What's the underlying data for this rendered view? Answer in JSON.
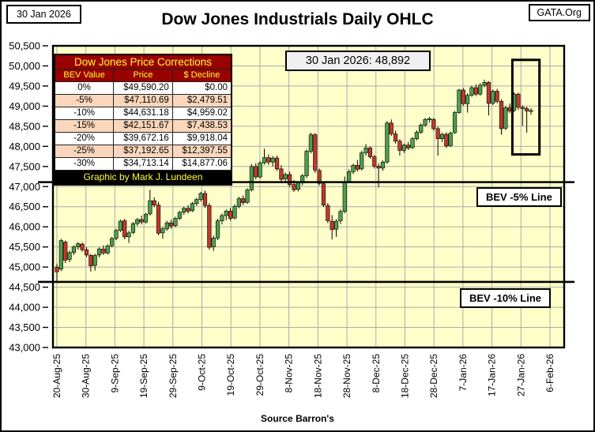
{
  "header": {
    "date_box": "30 Jan 2026",
    "org_box": "GATA.Org",
    "title": "Dow Jones Industrials Daily OHLC"
  },
  "corrections_table": {
    "title": "Dow Jones Price Corrections",
    "columns": [
      "BEV Value",
      "Price",
      "$ Decline"
    ],
    "rows": [
      [
        "0%",
        "$49,590.20",
        "$0.00"
      ],
      [
        "-5%",
        "$47,110.69",
        "$2,479.51"
      ],
      [
        "-10%",
        "$44,631.18",
        "$4,959.02"
      ],
      [
        "-15%",
        "$42,151.67",
        "$7,438.53"
      ],
      [
        "-20%",
        "$39,672.16",
        "$9,918.04"
      ],
      [
        "-25%",
        "$37,192.65",
        "$12,397.55"
      ],
      [
        "-30%",
        "$34,713.14",
        "$14,877.06"
      ]
    ],
    "footer": "Graphic by Mark J. Lundeen",
    "header_bg": "#990000",
    "header_text": "#FFFF33",
    "row_alt_bg": "#FAD7BC"
  },
  "annotations": {
    "price_callout": "30 Jan 2026: 48,892",
    "source": "Source Barron's"
  },
  "chart_data": {
    "type": "candlestick-ohlc",
    "title": "Dow Jones Industrials Daily OHLC",
    "ylim": [
      43000,
      50500
    ],
    "y_tick_step": 500,
    "y_tick_labels": [
      "43,000",
      "43,500",
      "44,000",
      "44,500",
      "45,000",
      "45,500",
      "46,000",
      "46,500",
      "47,000",
      "47,500",
      "48,000",
      "48,500",
      "49,000",
      "49,500",
      "50,000",
      "50,500"
    ],
    "x_tick_labels": [
      "20-Aug-25",
      "30-Aug-25",
      "9-Sep-25",
      "19-Sep-25",
      "29-Sep-25",
      "9-Oct-25",
      "19-Oct-25",
      "29-Oct-25",
      "8-Nov-25",
      "18-Nov-25",
      "28-Nov-25",
      "8-Dec-25",
      "18-Dec-25",
      "28-Dec-25",
      "7-Jan-26",
      "17-Jan-26",
      "27-Jan-26",
      "6-Feb-26"
    ],
    "grid": true,
    "legend": "none",
    "plot_bg": "#FFFFC9",
    "grid_color": "#ABABAB",
    "up_color": "#4E9D50",
    "down_color": "#C0392B",
    "hlines": [
      {
        "value": 47110.69,
        "label": "BEV -5% Line"
      },
      {
        "value": 44631.18,
        "label": "BEV -10% Line"
      }
    ],
    "highlight_box": {
      "start_index": 107.6,
      "end_index": 114,
      "top_value": 50150,
      "bottom_value": 47800
    },
    "last_close": 48892,
    "ohlc": [
      [
        "20-Aug-25",
        45000,
        45080,
        44640,
        44880
      ],
      [
        "21-Aug-25",
        44950,
        45700,
        44900,
        45660
      ],
      [
        "22-Aug-25",
        45620,
        45660,
        45100,
        45170
      ],
      [
        "25-Aug-25",
        45190,
        45410,
        45120,
        45360
      ],
      [
        "26-Aug-25",
        45360,
        45540,
        45300,
        45500
      ],
      [
        "27-Aug-25",
        45500,
        45620,
        45430,
        45580
      ],
      [
        "28-Aug-25",
        45570,
        45610,
        45380,
        45430
      ],
      [
        "29-Aug-25",
        45430,
        45490,
        45250,
        45300
      ],
      [
        "2-Sep-25",
        45290,
        45330,
        44890,
        45030
      ],
      [
        "3-Sep-25",
        45040,
        45330,
        44910,
        45290
      ],
      [
        "4-Sep-25",
        45300,
        45490,
        45240,
        45450
      ],
      [
        "5-Sep-25",
        45450,
        45540,
        45300,
        45350
      ],
      [
        "8-Sep-25",
        45350,
        45560,
        45310,
        45530
      ],
      [
        "9-Sep-25",
        45530,
        45750,
        45490,
        45710
      ],
      [
        "10-Sep-25",
        45710,
        45950,
        45670,
        45910
      ],
      [
        "11-Sep-25",
        45910,
        46180,
        45870,
        46140
      ],
      [
        "12-Sep-25",
        46150,
        46200,
        45690,
        45750
      ],
      [
        "15-Sep-25",
        45750,
        45900,
        45600,
        45850
      ],
      [
        "16-Sep-25",
        45860,
        46120,
        45820,
        46080
      ],
      [
        "17-Sep-25",
        46080,
        46220,
        46020,
        46180
      ],
      [
        "18-Sep-25",
        46180,
        46280,
        46060,
        46120
      ],
      [
        "19-Sep-25",
        46120,
        46350,
        46080,
        46310
      ],
      [
        "22-Sep-25",
        46320,
        46920,
        46280,
        46650
      ],
      [
        "23-Sep-25",
        46650,
        46730,
        46490,
        46540
      ],
      [
        "24-Sep-25",
        46540,
        46620,
        45790,
        45840
      ],
      [
        "25-Sep-25",
        45850,
        46000,
        45700,
        45950
      ],
      [
        "26-Sep-25",
        45950,
        46150,
        45900,
        46100
      ],
      [
        "29-Sep-25",
        46100,
        46180,
        45950,
        46020
      ],
      [
        "30-Sep-25",
        46030,
        46250,
        45990,
        46210
      ],
      [
        "1-Oct-25",
        46210,
        46400,
        46170,
        46360
      ],
      [
        "2-Oct-25",
        46360,
        46500,
        46300,
        46460
      ],
      [
        "3-Oct-25",
        46460,
        46540,
        46330,
        46390
      ],
      [
        "6-Oct-25",
        46400,
        46620,
        46370,
        46580
      ],
      [
        "7-Oct-25",
        46580,
        46720,
        46520,
        46680
      ],
      [
        "8-Oct-25",
        46680,
        46870,
        46630,
        46830
      ],
      [
        "9-Oct-25",
        46830,
        46900,
        46470,
        46530
      ],
      [
        "10-Oct-25",
        46530,
        46590,
        45430,
        45490
      ],
      [
        "13-Oct-25",
        45500,
        45780,
        45400,
        45720
      ],
      [
        "14-Oct-25",
        45720,
        46200,
        45670,
        46150
      ],
      [
        "15-Oct-25",
        46150,
        46330,
        46060,
        46280
      ],
      [
        "16-Oct-25",
        46280,
        46430,
        46160,
        46390
      ],
      [
        "17-Oct-25",
        46390,
        46470,
        46150,
        46210
      ],
      [
        "20-Oct-25",
        46220,
        46560,
        46180,
        46510
      ],
      [
        "21-Oct-25",
        46510,
        46750,
        46460,
        46700
      ],
      [
        "22-Oct-25",
        46700,
        46780,
        46540,
        46600
      ],
      [
        "23-Oct-25",
        46610,
        46960,
        46570,
        46920
      ],
      [
        "24-Oct-25",
        46920,
        47560,
        46880,
        47500
      ],
      [
        "27-Oct-25",
        47500,
        47580,
        47180,
        47240
      ],
      [
        "28-Oct-25",
        47240,
        47640,
        47200,
        47590
      ],
      [
        "29-Oct-25",
        47590,
        47940,
        47550,
        47720
      ],
      [
        "30-Oct-25",
        47720,
        47800,
        47540,
        47610
      ],
      [
        "31-Oct-25",
        47610,
        47760,
        47500,
        47710
      ],
      [
        "3-Nov-25",
        47710,
        47770,
        47390,
        47440
      ],
      [
        "4-Nov-25",
        47440,
        47530,
        47130,
        47180
      ],
      [
        "5-Nov-25",
        47190,
        47350,
        47100,
        47300
      ],
      [
        "6-Nov-25",
        47300,
        47370,
        46990,
        47050
      ],
      [
        "7-Nov-25",
        47050,
        47170,
        46870,
        46920
      ],
      [
        "10-Nov-25",
        46930,
        47130,
        46880,
        47090
      ],
      [
        "11-Nov-25",
        47090,
        47310,
        47030,
        47270
      ],
      [
        "12-Nov-25",
        47270,
        47920,
        47210,
        47880
      ],
      [
        "13-Nov-25",
        47880,
        48340,
        47830,
        48290
      ],
      [
        "14-Nov-25",
        48290,
        48330,
        47340,
        47410
      ],
      [
        "17-Nov-25",
        47400,
        47450,
        47030,
        47080
      ],
      [
        "18-Nov-25",
        47070,
        47110,
        46490,
        46540
      ],
      [
        "19-Nov-25",
        46530,
        46590,
        46090,
        46150
      ],
      [
        "20-Nov-25",
        46140,
        46290,
        45690,
        45930
      ],
      [
        "21-Nov-25",
        45940,
        46190,
        45750,
        46140
      ],
      [
        "24-Nov-25",
        46150,
        46430,
        46070,
        46380
      ],
      [
        "25-Nov-25",
        46380,
        47250,
        46340,
        47120
      ],
      [
        "26-Nov-25",
        47120,
        47430,
        47090,
        47370
      ],
      [
        "28-Nov-25",
        47370,
        47570,
        47310,
        47530
      ],
      [
        "1-Dec-25",
        47530,
        47660,
        47370,
        47430
      ],
      [
        "2-Dec-25",
        47440,
        47890,
        47400,
        47840
      ],
      [
        "3-Dec-25",
        47840,
        48060,
        47770,
        47960
      ],
      [
        "4-Dec-25",
        47960,
        48000,
        47690,
        47740
      ],
      [
        "5-Dec-25",
        47740,
        47790,
        47450,
        47510
      ],
      [
        "8-Dec-25",
        47510,
        47580,
        46980,
        47460
      ],
      [
        "9-Dec-25",
        47460,
        47650,
        47390,
        47610
      ],
      [
        "10-Dec-25",
        47610,
        48630,
        47570,
        48580
      ],
      [
        "11-Dec-25",
        48580,
        48670,
        48260,
        48310
      ],
      [
        "12-Dec-25",
        48310,
        48390,
        48070,
        48130
      ],
      [
        "15-Dec-25",
        48130,
        48180,
        47770,
        47900
      ],
      [
        "16-Dec-25",
        47900,
        48070,
        47840,
        48030
      ],
      [
        "17-Dec-25",
        48030,
        48110,
        47910,
        47960
      ],
      [
        "18-Dec-25",
        47970,
        48230,
        47930,
        48190
      ],
      [
        "19-Dec-25",
        48190,
        48400,
        48150,
        48350
      ],
      [
        "22-Dec-25",
        48350,
        48570,
        48310,
        48530
      ],
      [
        "23-Dec-25",
        48530,
        48710,
        48490,
        48670
      ],
      [
        "24-Dec-25",
        48670,
        48730,
        48590,
        48690
      ],
      [
        "26-Dec-25",
        48670,
        48710,
        48390,
        48440
      ],
      [
        "29-Dec-25",
        48440,
        48490,
        47770,
        48190
      ],
      [
        "30-Dec-25",
        48190,
        48340,
        48110,
        48300
      ],
      [
        "31-Dec-25",
        48300,
        48350,
        47960,
        48010
      ],
      [
        "2-Jan-26",
        48020,
        48370,
        47990,
        48330
      ],
      [
        "5-Jan-26",
        48340,
        48880,
        48310,
        48840
      ],
      [
        "6-Jan-26",
        48840,
        49430,
        48810,
        49400
      ],
      [
        "7-Jan-26",
        49400,
        49450,
        49010,
        49060
      ],
      [
        "8-Jan-26",
        49060,
        49320,
        48840,
        49270
      ],
      [
        "9-Jan-26",
        49270,
        49510,
        49230,
        49460
      ],
      [
        "12-Jan-26",
        49460,
        49540,
        49250,
        49300
      ],
      [
        "13-Jan-26",
        49300,
        49570,
        49260,
        49520
      ],
      [
        "14-Jan-26",
        49520,
        49660,
        49470,
        49590
      ],
      [
        "15-Jan-26",
        49590,
        49620,
        48770,
        49070
      ],
      [
        "16-Jan-26",
        49070,
        49410,
        49030,
        49370
      ],
      [
        "20-Jan-26",
        49370,
        49430,
        49070,
        49120
      ],
      [
        "21-Jan-26",
        49120,
        49170,
        48290,
        48440
      ],
      [
        "22-Jan-26",
        48450,
        49000,
        48410,
        48960
      ],
      [
        "23-Jan-26",
        48960,
        49070,
        48830,
        48880
      ],
      [
        "26-Jan-26",
        48890,
        49340,
        48860,
        49300
      ],
      [
        "27-Jan-26",
        49300,
        49330,
        48910,
        48970
      ],
      [
        "28-Jan-26",
        48970,
        49020,
        48510,
        48940
      ],
      [
        "29-Jan-26",
        48940,
        48990,
        48340,
        48880
      ],
      [
        "30-Jan-26",
        48880,
        48950,
        48790,
        48892
      ]
    ]
  }
}
